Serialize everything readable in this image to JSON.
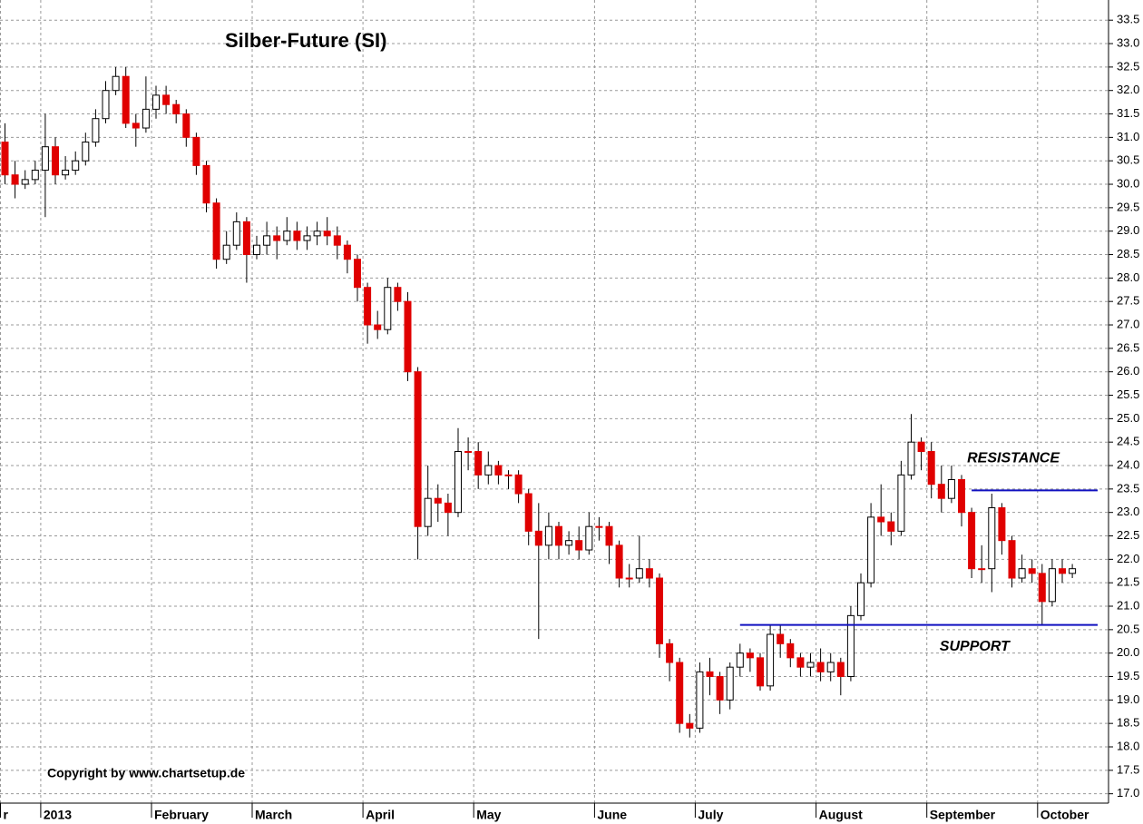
{
  "chart_data": {
    "type": "candlestick",
    "title": "Silber-Future  (SI)",
    "copyright": "Copyright by www.chartsetup.de",
    "categories": [
      "r",
      null,
      null,
      null,
      "2013",
      null,
      null,
      null,
      null,
      null,
      null,
      null,
      null,
      null,
      null,
      "February",
      null,
      null,
      null,
      null,
      null,
      null,
      null,
      null,
      null,
      "March",
      null,
      null,
      null,
      null,
      null,
      null,
      null,
      null,
      null,
      null,
      "April",
      null,
      null,
      null,
      null,
      null,
      null,
      null,
      null,
      null,
      null,
      "May",
      null,
      null,
      null,
      null,
      null,
      null,
      null,
      null,
      null,
      null,
      null,
      "June",
      null,
      null,
      null,
      null,
      null,
      null,
      null,
      null,
      null,
      "July",
      null,
      null,
      null,
      null,
      null,
      null,
      null,
      null,
      null,
      null,
      null,
      "August",
      null,
      null,
      null,
      null,
      null,
      null,
      null,
      null,
      null,
      null,
      "September",
      null,
      null,
      null,
      null,
      null,
      null,
      null,
      null,
      null,
      null,
      "October",
      null,
      null,
      null
    ],
    "open": [
      30.9,
      30.2,
      30.0,
      30.1,
      30.3,
      30.8,
      30.2,
      30.3,
      30.5,
      30.9,
      31.4,
      32.0,
      32.3,
      31.3,
      31.2,
      31.6,
      31.9,
      31.7,
      31.5,
      31.0,
      30.4,
      29.6,
      28.4,
      28.7,
      29.2,
      28.5,
      28.7,
      28.9,
      28.8,
      29.0,
      28.8,
      28.9,
      29.0,
      28.9,
      28.7,
      28.4,
      27.8,
      27.0,
      26.9,
      27.8,
      27.5,
      26.0,
      22.7,
      23.3,
      23.2,
      23.0,
      24.3,
      24.3,
      23.8,
      24.0,
      23.8,
      23.8,
      23.4,
      22.6,
      22.3,
      22.7,
      22.3,
      22.4,
      22.2,
      22.7,
      22.7,
      22.3,
      21.6,
      21.6,
      21.8,
      21.6,
      20.2,
      19.8,
      18.5,
      18.4,
      19.6,
      19.5,
      19.0,
      19.7,
      20.0,
      19.9,
      19.3,
      20.4,
      20.2,
      19.9,
      19.7,
      19.8,
      19.6,
      19.8,
      19.5,
      20.8,
      21.5,
      22.9,
      22.8,
      22.6,
      23.8,
      24.5,
      24.3,
      23.6,
      23.3,
      23.7,
      23.0,
      21.8,
      21.8,
      23.1,
      22.4,
      21.6,
      21.8,
      21.7,
      21.1,
      21.8,
      21.7
    ],
    "high": [
      31.3,
      30.5,
      30.3,
      30.5,
      31.5,
      31.0,
      30.6,
      30.7,
      31.1,
      31.6,
      32.2,
      32.5,
      32.5,
      31.5,
      32.3,
      32.1,
      32.1,
      31.8,
      31.6,
      31.1,
      30.5,
      29.7,
      29.0,
      29.4,
      29.3,
      28.9,
      29.2,
      29.1,
      29.3,
      29.2,
      29.1,
      29.2,
      29.3,
      29.1,
      28.8,
      28.5,
      27.9,
      27.3,
      28.0,
      27.9,
      27.7,
      26.1,
      24.0,
      23.6,
      23.4,
      24.8,
      24.6,
      24.5,
      24.3,
      24.1,
      23.9,
      23.9,
      23.5,
      23.2,
      23.0,
      22.8,
      22.6,
      22.7,
      23.0,
      22.9,
      22.8,
      22.4,
      21.9,
      22.5,
      22.0,
      21.7,
      20.3,
      19.9,
      18.7,
      19.8,
      19.9,
      19.6,
      19.8,
      20.2,
      20.1,
      20.0,
      20.6,
      20.6,
      20.3,
      20.0,
      20.0,
      20.1,
      20.0,
      19.9,
      21.0,
      21.7,
      23.2,
      23.6,
      23.0,
      24.1,
      25.1,
      24.6,
      24.5,
      24.0,
      24.0,
      23.8,
      23.1,
      22.3,
      23.4,
      23.2,
      22.5,
      22.1,
      22.0,
      21.9,
      22.0,
      22.0,
      21.9
    ],
    "low": [
      30.0,
      29.7,
      29.9,
      30.0,
      29.3,
      30.0,
      30.1,
      30.2,
      30.4,
      30.8,
      31.3,
      31.9,
      31.2,
      30.8,
      31.1,
      31.4,
      31.5,
      31.3,
      30.8,
      30.2,
      29.4,
      28.2,
      28.3,
      28.6,
      27.9,
      28.4,
      28.5,
      28.4,
      28.7,
      28.6,
      28.6,
      28.7,
      28.7,
      28.4,
      28.1,
      27.5,
      26.6,
      26.7,
      26.8,
      27.3,
      25.8,
      22.0,
      22.5,
      22.8,
      22.5,
      22.9,
      23.9,
      23.5,
      23.6,
      23.6,
      23.5,
      23.2,
      22.3,
      20.3,
      22.0,
      22.0,
      22.1,
      22.0,
      22.1,
      22.4,
      21.9,
      21.4,
      21.4,
      21.5,
      21.4,
      19.9,
      19.4,
      18.3,
      18.2,
      18.3,
      19.1,
      18.7,
      18.8,
      19.5,
      19.6,
      19.2,
      19.2,
      19.9,
      19.7,
      19.5,
      19.5,
      19.4,
      19.4,
      19.1,
      19.4,
      20.7,
      21.4,
      22.5,
      22.3,
      22.5,
      23.7,
      23.9,
      23.3,
      23.0,
      23.2,
      22.7,
      21.6,
      21.5,
      21.3,
      22.1,
      21.4,
      21.5,
      21.5,
      20.6,
      21.0,
      21.5,
      21.6
    ],
    "close": [
      30.2,
      30.0,
      30.1,
      30.3,
      30.8,
      30.2,
      30.3,
      30.5,
      30.9,
      31.4,
      32.0,
      32.3,
      31.3,
      31.2,
      31.6,
      31.9,
      31.7,
      31.5,
      31.0,
      30.4,
      29.6,
      28.4,
      28.7,
      29.2,
      28.5,
      28.7,
      28.9,
      28.8,
      29.0,
      28.8,
      28.9,
      29.0,
      28.9,
      28.7,
      28.4,
      27.8,
      27.0,
      26.9,
      27.8,
      27.5,
      26.0,
      22.7,
      23.3,
      23.2,
      23.0,
      24.3,
      24.3,
      23.8,
      24.0,
      23.8,
      23.8,
      23.4,
      22.6,
      22.3,
      22.7,
      22.3,
      22.4,
      22.2,
      22.7,
      22.7,
      22.3,
      21.6,
      21.6,
      21.8,
      21.6,
      20.2,
      19.8,
      18.5,
      18.4,
      19.6,
      19.5,
      19.0,
      19.7,
      20.0,
      19.9,
      19.3,
      20.4,
      20.2,
      19.9,
      19.7,
      19.8,
      19.6,
      19.8,
      19.5,
      20.8,
      21.5,
      22.9,
      22.8,
      22.6,
      23.8,
      24.5,
      24.3,
      23.6,
      23.3,
      23.7,
      23.0,
      21.8,
      21.8,
      23.1,
      22.4,
      21.6,
      21.8,
      21.7,
      21.1,
      21.8,
      21.7,
      21.8
    ],
    "up_color": "#ffffff",
    "down_color": "#e00000",
    "levels": [
      {
        "label": "RESISTANCE",
        "value": 23.47,
        "start": 96,
        "color": "#1010c0"
      },
      {
        "label": "SUPPORT",
        "value": 20.6,
        "start": 73,
        "color": "#1010c0"
      }
    ],
    "ylim": [
      16.8,
      33.93
    ],
    "yticks": [
      {
        "value": 17,
        "label": "17.0"
      },
      17.5,
      {
        "value": 18,
        "label": "18.0"
      },
      18.5,
      {
        "value": 19,
        "label": "19.0"
      },
      19.5,
      {
        "value": 20,
        "label": "20.0"
      },
      20.5,
      {
        "value": 21,
        "label": "21.0"
      },
      21.5,
      {
        "value": 22,
        "label": "22.0"
      },
      22.5,
      {
        "value": 23,
        "label": "23.0"
      },
      23.5,
      {
        "value": 24,
        "label": "24.0"
      },
      24.5,
      {
        "value": 25,
        "label": "25.0"
      },
      25.5,
      {
        "value": 26,
        "label": "26.0"
      },
      26.5,
      {
        "value": 27,
        "label": "27.0"
      },
      27.5,
      {
        "value": 28,
        "label": "28.0"
      },
      28.5,
      {
        "value": 29,
        "label": "29.0"
      },
      29.5,
      {
        "value": 30,
        "label": "30.0"
      },
      30.5,
      {
        "value": 31,
        "label": "31.0"
      },
      31.5,
      {
        "value": 32,
        "label": "32.0"
      },
      32.5,
      {
        "value": 33,
        "label": "33.0"
      },
      33.5
    ],
    "grid": true
  }
}
